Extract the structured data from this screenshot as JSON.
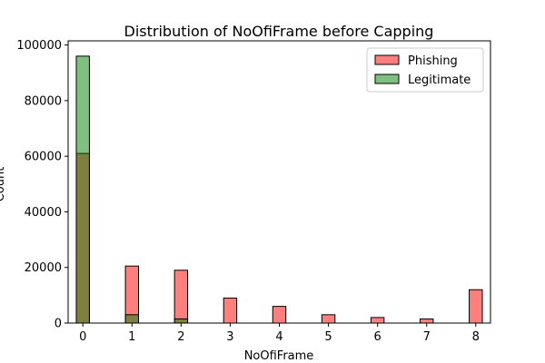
{
  "chart_data": {
    "type": "bar",
    "title": "Distribution of NoOfiFrame before Capping",
    "xlabel": "NoOfiFrame",
    "ylabel": "Count",
    "xlim": [
      -0.3,
      8.3
    ],
    "ylim": [
      0,
      101500
    ],
    "xticks": [
      0,
      1,
      2,
      3,
      4,
      5,
      6,
      7,
      8
    ],
    "yticks": [
      0,
      20000,
      40000,
      60000,
      80000,
      100000
    ],
    "grid": false,
    "legend_position": "top-right",
    "bin_width": 0.267,
    "series": [
      {
        "name": "Phishing",
        "color": "#ff0000",
        "alpha": 0.5,
        "x": [
          0,
          1,
          2,
          3,
          4,
          5,
          6,
          7,
          8
        ],
        "values": [
          61000,
          20500,
          19000,
          9000,
          6000,
          3000,
          2000,
          1500,
          12000
        ]
      },
      {
        "name": "Legitimate",
        "color": "#008000",
        "alpha": 0.5,
        "x": [
          0,
          1,
          2,
          3,
          4,
          5,
          6,
          7,
          8
        ],
        "values": [
          96000,
          3000,
          1500,
          0,
          0,
          0,
          0,
          0,
          0
        ]
      }
    ]
  }
}
